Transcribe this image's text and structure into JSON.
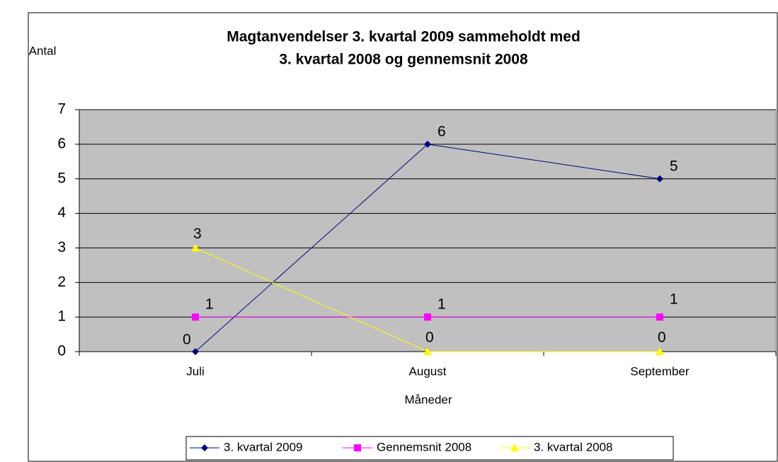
{
  "chart_data": {
    "type": "line",
    "title": [
      "Magtanvendelser 3. kvartal 2009 sammeholdt med",
      "3. kvartal 2008 og gennemsnit 2008"
    ],
    "y_label": "Antal",
    "x_label": "Måneder",
    "categories": [
      "Juli",
      "August",
      "September"
    ],
    "series": [
      {
        "name": "3. kvartal 2009",
        "color": "#000080",
        "marker": "diamond",
        "values": [
          0,
          6,
          5
        ]
      },
      {
        "name": "Gennemsnit 2008",
        "color": "#ff00ff",
        "marker": "square",
        "values": [
          1,
          1,
          1
        ]
      },
      {
        "name": "3. kvartal 2008",
        "color": "#ffff00",
        "marker": "triangle",
        "values": [
          3,
          0,
          0
        ]
      }
    ],
    "ylim": [
      0,
      7
    ],
    "yticks": [
      0,
      1,
      2,
      3,
      4,
      5,
      6,
      7
    ],
    "grid": true,
    "legend": "bottom"
  }
}
